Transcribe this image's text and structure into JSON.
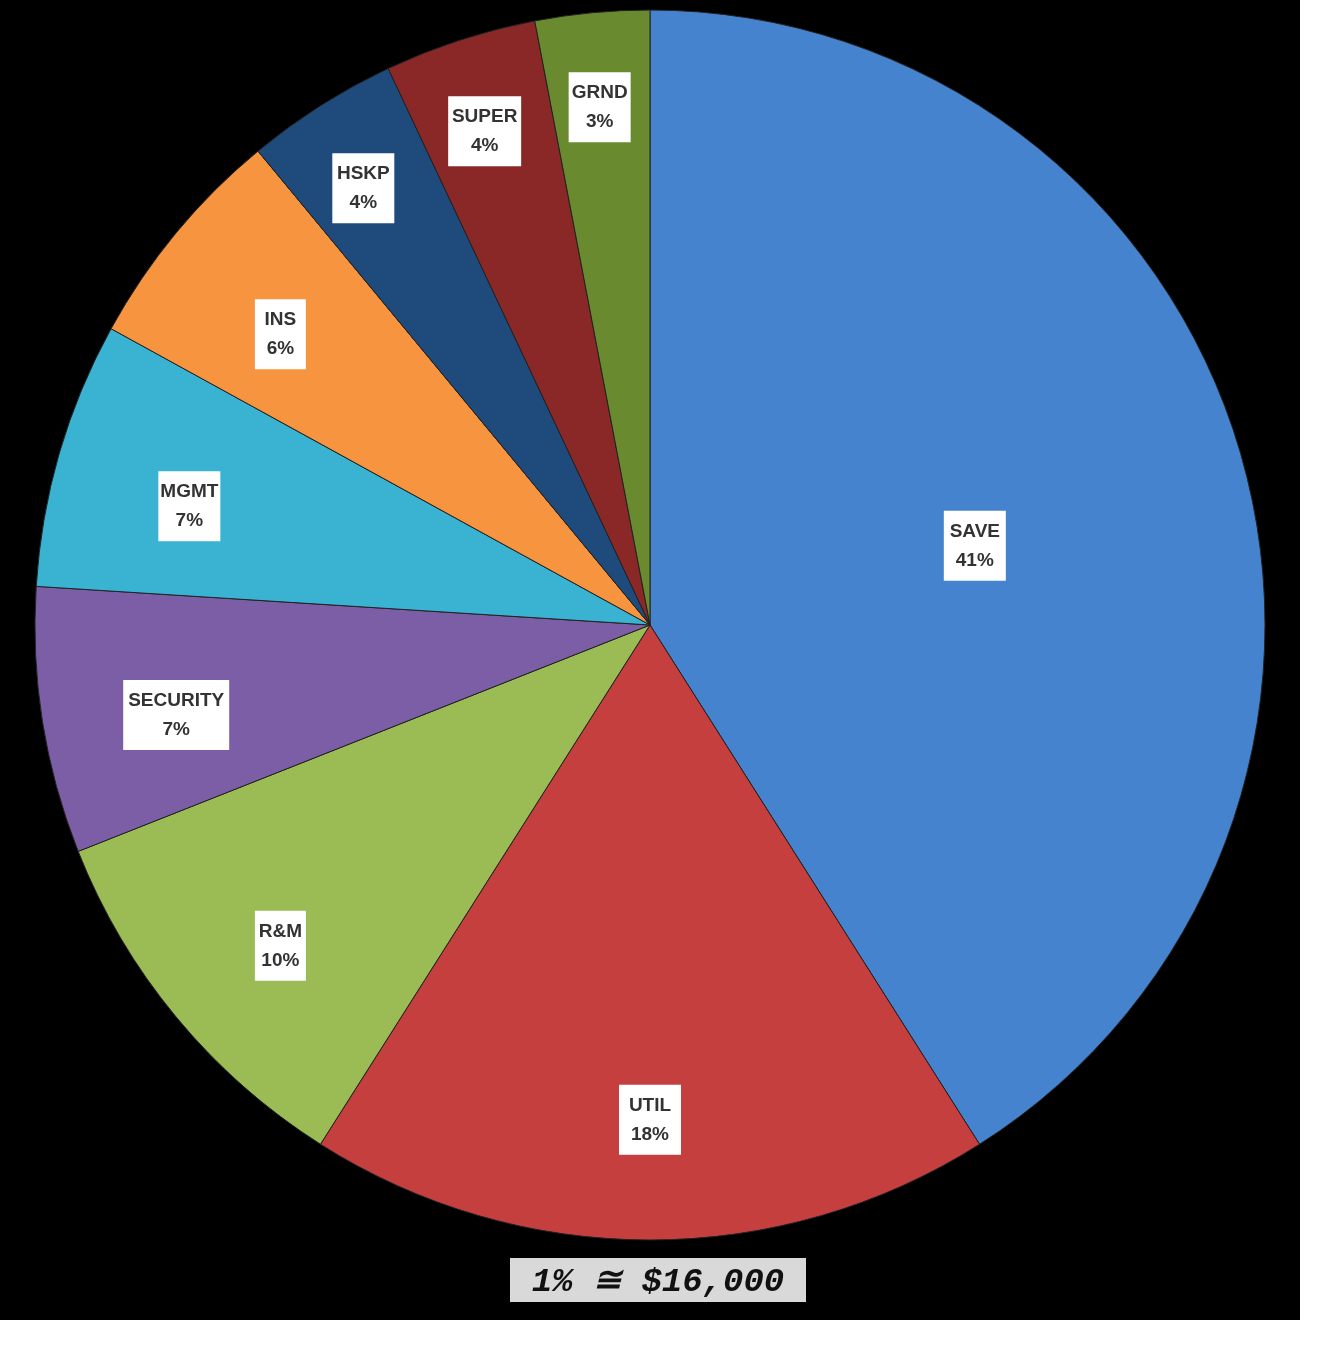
{
  "chart_data": {
    "type": "pie",
    "categories": [
      "SAVE",
      "UTIL",
      "R&M",
      "SECURITY",
      "MGMT",
      "INS",
      "HSKP",
      "SUPER",
      "GRND"
    ],
    "values": [
      41,
      18,
      10,
      7,
      7,
      6,
      4,
      4,
      3
    ],
    "value_labels": [
      "41%",
      "18%",
      "10%",
      "7%",
      "7%",
      "6%",
      "4%",
      "4%",
      "3%"
    ],
    "colors": [
      "#4683cf",
      "#c63f3f",
      "#9bbb55",
      "#7c5ea6",
      "#3ab2d2",
      "#f7943f",
      "#1f4a7c",
      "#8a2828",
      "#6a8a30"
    ],
    "annotations": [
      "1% ≅ $16,000"
    ]
  }
}
